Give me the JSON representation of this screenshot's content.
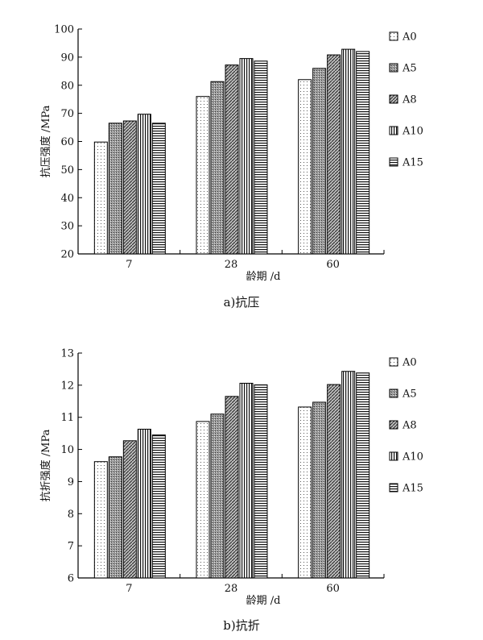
{
  "chart_data": [
    {
      "type": "bar",
      "caption": "a)抗压",
      "xlabel": "龄期 /d",
      "ylabel": "抗压强度 /MPa",
      "ylim": [
        20,
        100
      ],
      "yticks": [
        20,
        30,
        40,
        50,
        60,
        70,
        80,
        90,
        100
      ],
      "categories": [
        "7",
        "28",
        "60"
      ],
      "series": [
        {
          "name": "A0",
          "values": [
            59.8,
            76.0,
            82.0
          ],
          "pattern": "dots"
        },
        {
          "name": "A5",
          "values": [
            66.5,
            81.3,
            86.0
          ],
          "pattern": "dense"
        },
        {
          "name": "A8",
          "values": [
            67.3,
            87.2,
            90.8
          ],
          "pattern": "diag"
        },
        {
          "name": "A10",
          "values": [
            69.7,
            89.5,
            92.8
          ],
          "pattern": "vert"
        },
        {
          "name": "A15",
          "values": [
            66.5,
            88.6,
            92.0
          ],
          "pattern": "horiz"
        }
      ]
    },
    {
      "type": "bar",
      "caption": "b)抗折",
      "xlabel": "龄期 /d",
      "ylabel": "抗折强度 /MPa",
      "ylim": [
        6,
        13
      ],
      "yticks": [
        6,
        7,
        8,
        9,
        10,
        11,
        12,
        13
      ],
      "categories": [
        "7",
        "28",
        "60"
      ],
      "series": [
        {
          "name": "A0",
          "values": [
            9.62,
            10.87,
            11.32
          ],
          "pattern": "dots"
        },
        {
          "name": "A5",
          "values": [
            9.77,
            11.1,
            11.47
          ],
          "pattern": "dense"
        },
        {
          "name": "A8",
          "values": [
            10.27,
            11.65,
            12.02
          ],
          "pattern": "diag"
        },
        {
          "name": "A10",
          "values": [
            10.63,
            12.06,
            12.43
          ],
          "pattern": "vert"
        },
        {
          "name": "A15",
          "values": [
            10.45,
            12.01,
            12.38
          ],
          "pattern": "horiz"
        }
      ]
    }
  ]
}
